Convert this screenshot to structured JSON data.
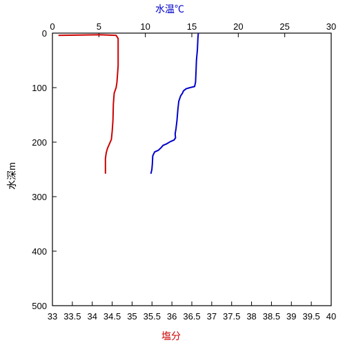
{
  "chart_data": {
    "type": "line",
    "temperature_axis": {
      "label": "水温℃",
      "label_color": "#0000cc",
      "range": [
        0,
        30
      ],
      "ticks": [
        "0",
        "5",
        "10",
        "15",
        "20",
        "25",
        "30"
      ]
    },
    "salinity_axis": {
      "label": "塩分",
      "label_color": "#cc0000",
      "range": [
        33,
        40
      ],
      "ticks": [
        "33",
        "33.5",
        "34",
        "34.5",
        "35",
        "35.5",
        "36",
        "36.5",
        "37",
        "37.5",
        "38",
        "38.5",
        "39",
        "39.5",
        "40"
      ]
    },
    "depth_axis": {
      "label": "水深m",
      "range": [
        0,
        500
      ],
      "ticks": [
        "0",
        "100",
        "200",
        "300",
        "400",
        "500"
      ]
    },
    "series": [
      {
        "quantity": "temperature",
        "color": "#0000cc",
        "points": [
          [
            15.7,
            0
          ],
          [
            15.65,
            10
          ],
          [
            15.6,
            30
          ],
          [
            15.5,
            50
          ],
          [
            15.45,
            70
          ],
          [
            15.4,
            90
          ],
          [
            15.3,
            98
          ],
          [
            14.8,
            100
          ],
          [
            14.4,
            102
          ],
          [
            14.1,
            106
          ],
          [
            14.0,
            110
          ],
          [
            13.8,
            115
          ],
          [
            13.6,
            125
          ],
          [
            13.5,
            140
          ],
          [
            13.4,
            160
          ],
          [
            13.3,
            175
          ],
          [
            13.2,
            185
          ],
          [
            13.25,
            192
          ],
          [
            13.1,
            196
          ],
          [
            12.7,
            199
          ],
          [
            12.3,
            203
          ],
          [
            11.9,
            206
          ],
          [
            11.7,
            210
          ],
          [
            11.4,
            215
          ],
          [
            11.0,
            218
          ],
          [
            10.8,
            225
          ],
          [
            10.75,
            240
          ],
          [
            10.7,
            250
          ],
          [
            10.6,
            258
          ]
        ]
      },
      {
        "quantity": "salinity",
        "color": "#cc0000",
        "points": [
          [
            33.15,
            4
          ],
          [
            34.2,
            3
          ],
          [
            34.6,
            4
          ],
          [
            34.65,
            10
          ],
          [
            34.65,
            30
          ],
          [
            34.65,
            60
          ],
          [
            34.62,
            90
          ],
          [
            34.6,
            100
          ],
          [
            34.55,
            110
          ],
          [
            34.53,
            130
          ],
          [
            34.52,
            160
          ],
          [
            34.5,
            180
          ],
          [
            34.48,
            195
          ],
          [
            34.42,
            205
          ],
          [
            34.38,
            212
          ],
          [
            34.35,
            220
          ],
          [
            34.33,
            230
          ],
          [
            34.33,
            240
          ],
          [
            34.33,
            258
          ]
        ]
      }
    ]
  }
}
